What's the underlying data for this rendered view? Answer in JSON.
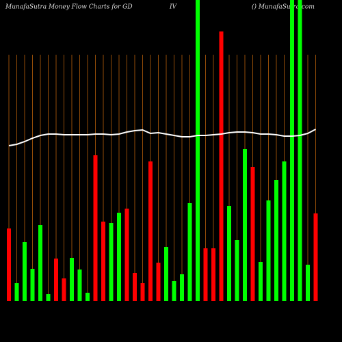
{
  "chart_data": {
    "type": "bar",
    "title": "MunafaSutra  Money  Flow  Charts for GD",
    "title_mid": "IV",
    "title_right": "() MunafaSutra.com",
    "categories": [
      null,
      null,
      null,
      null,
      null,
      null,
      null,
      null,
      null,
      null,
      null,
      null,
      null,
      null,
      null,
      null,
      null,
      null,
      null,
      null,
      null,
      null,
      null,
      null,
      null,
      null,
      null,
      null,
      null,
      null,
      null,
      null,
      null,
      null,
      null,
      null,
      null,
      null,
      null,
      null
    ],
    "series": [
      {
        "values": [
          106,
          26,
          86,
          47,
          111,
          10,
          62,
          33,
          63,
          46,
          12,
          213,
          116,
          114,
          129,
          135,
          41,
          26,
          204,
          56,
          79,
          29,
          39,
          143,
          460,
          77,
          77,
          394,
          139,
          89,
          222,
          196,
          57,
          147,
          177,
          204,
          460,
          460,
          53,
          128
        ],
        "colors": [
          "#ff0000",
          "#00ff00",
          "#00ff00",
          "#00ff00",
          "#00ff00",
          "#00ff00",
          "#ff0000",
          "#ff0000",
          "#00ff00",
          "#00ff00",
          "#00ff00",
          "#ff0000",
          "#ff0000",
          "#00ff00",
          "#00ff00",
          "#ff0000",
          "#ff0000",
          "#ff0000",
          "#ff0000",
          "#ff0000",
          "#00ff00",
          "#00ff00",
          "#00ff00",
          "#00ff00",
          "#00ff00",
          "#ff0000",
          "#ff0000",
          "#ff0000",
          "#00ff00",
          "#00ff00",
          "#00ff00",
          "#ff0000",
          "#00ff00",
          "#00ff00",
          "#00ff00",
          "#00ff00",
          "#00ff00",
          "#00ff00",
          "#00ff00",
          "#ff0000"
        ]
      },
      {
        "type": "line",
        "color": "#ffffff",
        "values": [
          227,
          229,
          233,
          238,
          242,
          244,
          244,
          243,
          243,
          243,
          243,
          244,
          244,
          243,
          244,
          247,
          249,
          250,
          245,
          246,
          244,
          242,
          240,
          240,
          242,
          242,
          243,
          244,
          246,
          247,
          247,
          246,
          244,
          244,
          243,
          241,
          241,
          242,
          245,
          251
        ]
      }
    ],
    "ylim": [
      0,
      440
    ],
    "grid_color": "#b8600b"
  }
}
